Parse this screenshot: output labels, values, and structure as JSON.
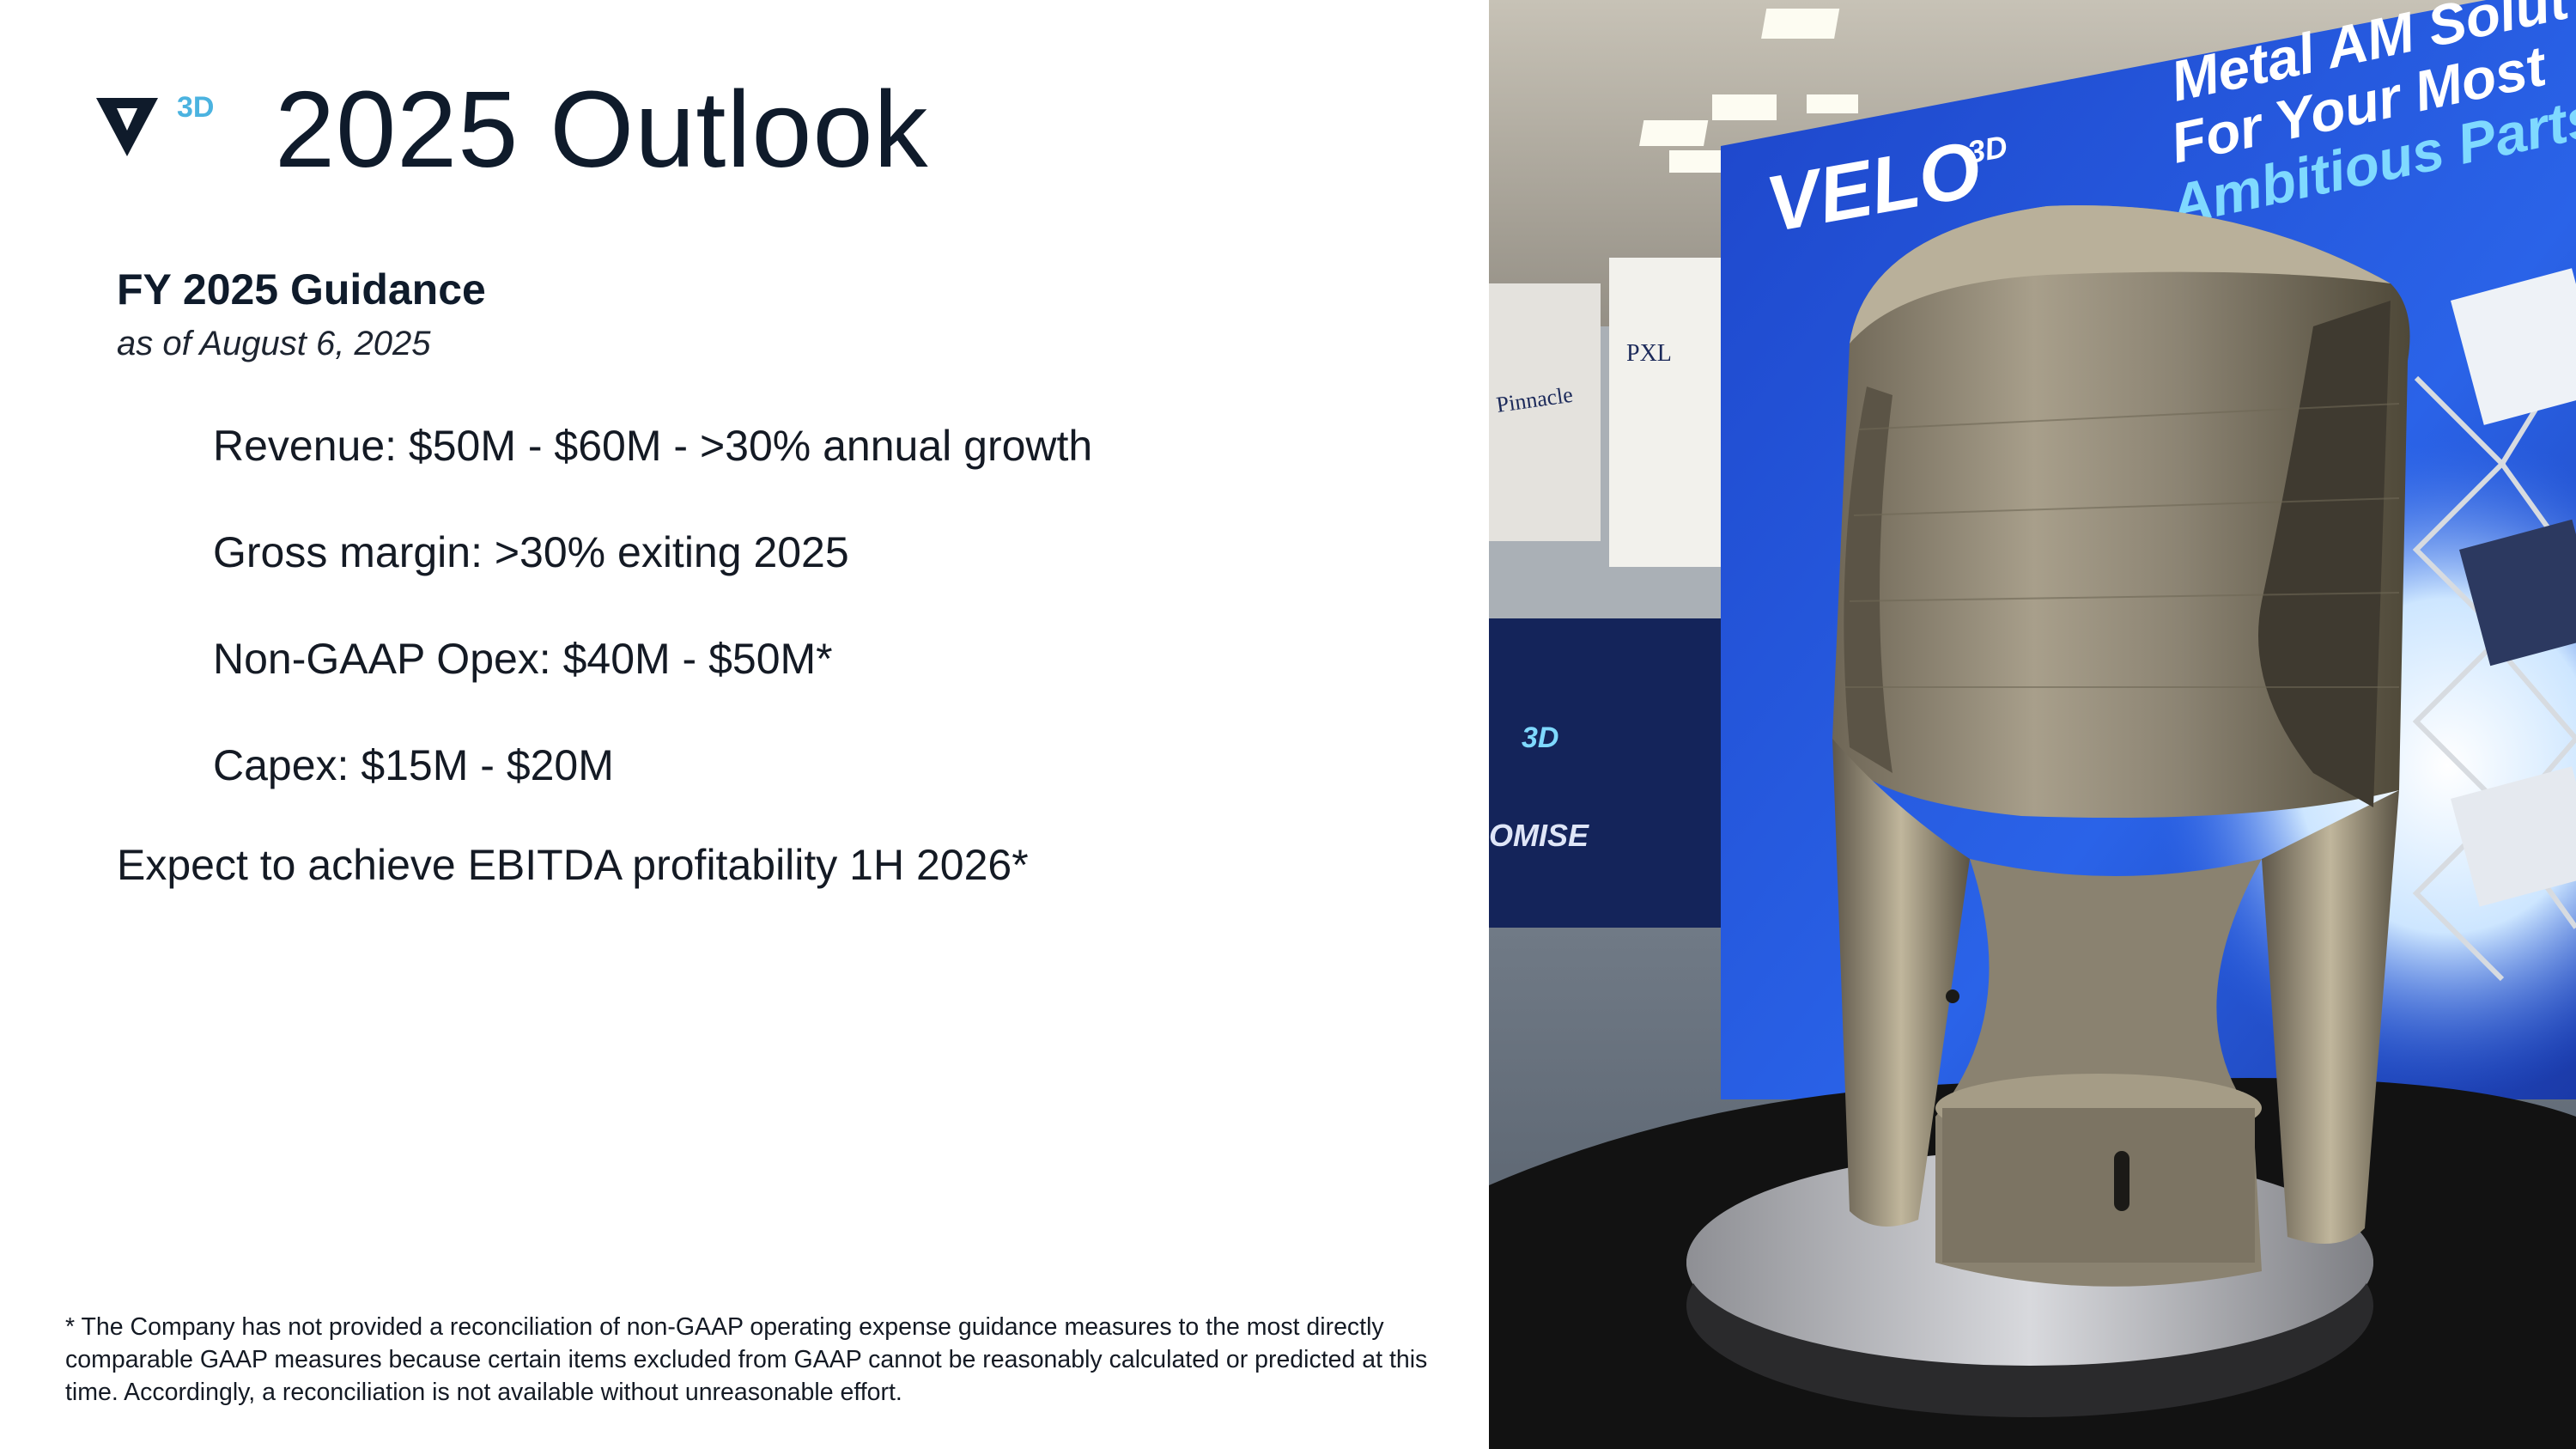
{
  "header": {
    "logo_superscript": "3D",
    "title": "2025 Outlook"
  },
  "guidance": {
    "heading": "FY 2025 Guidance",
    "as_of": "as of August 6, 2025",
    "items": [
      "Revenue: $50M - $60M - >30% annual growth",
      "Gross margin: >30% exiting 2025",
      "Non-GAAP Opex:  $40M - $50M*",
      "Capex:  $15M - $20M"
    ],
    "summary": "Expect to achieve EBITDA profitability 1H 2026*"
  },
  "footnote": "* The Company has not provided a reconciliation of non-GAAP operating expense guidance measures to the most directly comparable GAAP measures because certain items excluded from GAAP cannot be reasonably calculated or predicted at this time. Accordingly, a reconciliation is not available without unreasonable effort.",
  "photo": {
    "booth_brand": "VELO",
    "booth_brand_superscript": "3D",
    "booth_headline_1": "Metal AM Solut",
    "booth_headline_2": "For Your Most",
    "booth_headline_3": "Ambitious Parts",
    "side_brand": "3D",
    "side_text": "OMISE",
    "left_booth_sign": "Pinnacle",
    "left_booth_sign_2": "PXL"
  },
  "colors": {
    "title": "#0f1b2b",
    "accent": "#4bb3e0",
    "booth_blue": "#1f4fd6"
  }
}
